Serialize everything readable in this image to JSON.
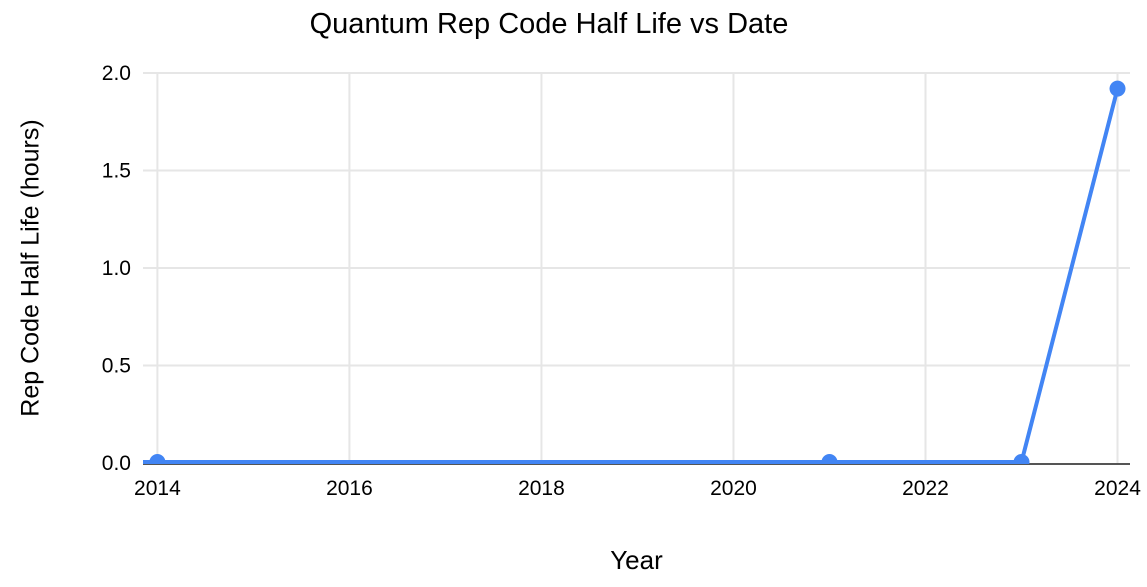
{
  "chart_data": {
    "type": "line",
    "title": "Quantum Rep Code Half Life vs Date",
    "xlabel": "Year",
    "ylabel": "Rep Code Half Life (hours)",
    "x": [
      2014,
      2021,
      2023,
      2024
    ],
    "values": [
      0.005,
      0.005,
      0.005,
      1.92
    ],
    "xlim": [
      2013.85,
      2024.13
    ],
    "ylim": [
      0,
      2
    ],
    "xticks": [
      2014,
      2016,
      2018,
      2020,
      2022,
      2024
    ],
    "xtick_labels": [
      "2014",
      "2016",
      "2018",
      "2020",
      "2022",
      "2024"
    ],
    "ytick_values": [
      0,
      0.5,
      1,
      1.5,
      2
    ],
    "ytick_labels": [
      "0.0",
      "0.5",
      "1.0",
      "1.5",
      "2.0"
    ],
    "grid": "both",
    "legend": "none",
    "line_extends_to_left_edge": true,
    "colors": {
      "series": "#4285F4",
      "gridline": "#e6e6e6",
      "axis": "#555555",
      "text": "#000000",
      "background": "#ffffff"
    },
    "point_radius": 8,
    "line_width": 4,
    "tick_font_size": 21
  }
}
